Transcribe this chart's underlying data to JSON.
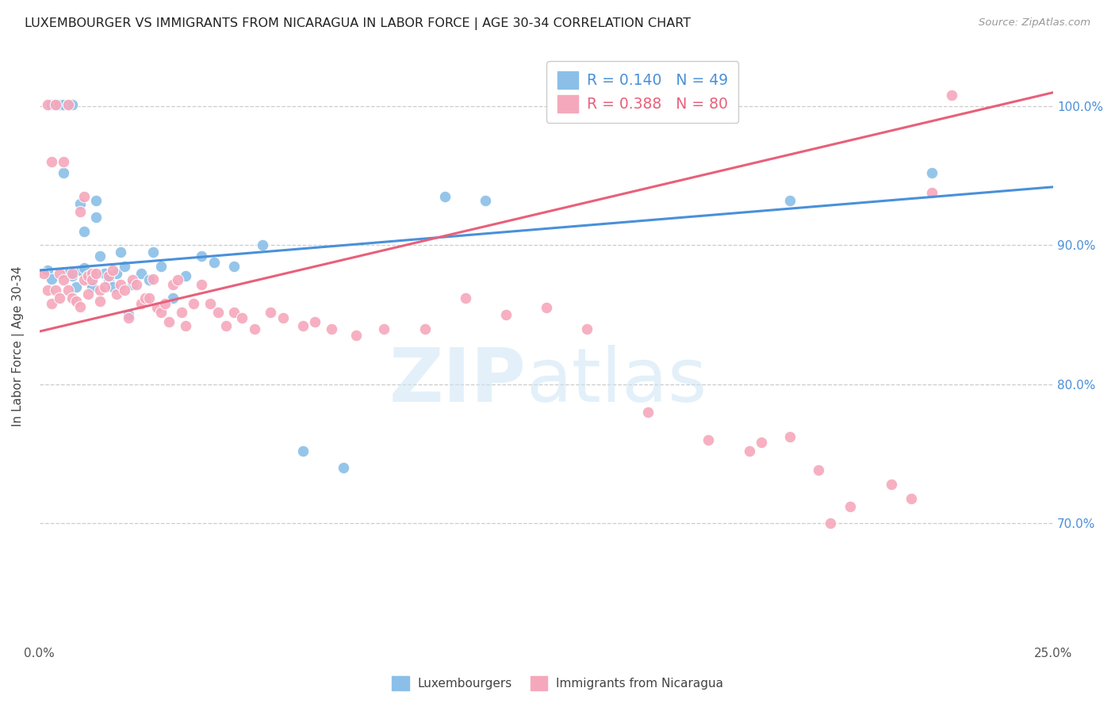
{
  "title": "LUXEMBOURGER VS IMMIGRANTS FROM NICARAGUA IN LABOR FORCE | AGE 30-34 CORRELATION CHART",
  "source": "Source: ZipAtlas.com",
  "ylabel": "In Labor Force | Age 30-34",
  "yaxis_labels": [
    "70.0%",
    "80.0%",
    "90.0%",
    "100.0%"
  ],
  "yaxis_values": [
    0.7,
    0.8,
    0.9,
    1.0
  ],
  "xlim": [
    0.0,
    0.25
  ],
  "ylim": [
    0.615,
    1.04
  ],
  "legend_blue_R": "R = 0.140",
  "legend_blue_N": "N = 49",
  "legend_pink_R": "R = 0.388",
  "legend_pink_N": "N = 80",
  "legend_label_blue": "Luxembourgers",
  "legend_label_pink": "Immigrants from Nicaragua",
  "blue_color": "#8bbfe8",
  "pink_color": "#f5a8bc",
  "blue_line_color": "#4a90d9",
  "pink_line_color": "#e8607a",
  "blue_trend_x0": 0.0,
  "blue_trend_y0": 0.882,
  "blue_trend_x1": 0.25,
  "blue_trend_y1": 0.942,
  "pink_trend_x0": 0.0,
  "pink_trend_y0": 0.838,
  "pink_trend_x1": 0.25,
  "pink_trend_y1": 1.01,
  "blue_x": [
    0.002,
    0.003,
    0.003,
    0.004,
    0.004,
    0.005,
    0.005,
    0.006,
    0.006,
    0.007,
    0.007,
    0.008,
    0.008,
    0.009,
    0.01,
    0.01,
    0.011,
    0.011,
    0.012,
    0.012,
    0.013,
    0.013,
    0.014,
    0.014,
    0.015,
    0.016,
    0.017,
    0.018,
    0.019,
    0.02,
    0.021,
    0.022,
    0.023,
    0.025,
    0.027,
    0.028,
    0.03,
    0.033,
    0.036,
    0.04,
    0.043,
    0.048,
    0.055,
    0.065,
    0.075,
    0.1,
    0.11,
    0.185,
    0.22
  ],
  "blue_y": [
    0.882,
    0.876,
    1.001,
    1.001,
    1.001,
    1.001,
    1.001,
    1.001,
    0.952,
    0.88,
    1.001,
    0.878,
    1.001,
    0.87,
    0.882,
    0.93,
    0.884,
    0.91,
    0.878,
    0.876,
    0.874,
    0.87,
    0.932,
    0.92,
    0.892,
    0.88,
    0.875,
    0.87,
    0.88,
    0.895,
    0.885,
    0.85,
    0.872,
    0.88,
    0.875,
    0.895,
    0.885,
    0.862,
    0.878,
    0.892,
    0.888,
    0.885,
    0.9,
    0.752,
    0.74,
    0.935,
    0.932,
    0.932,
    0.952
  ],
  "pink_x": [
    0.001,
    0.002,
    0.002,
    0.003,
    0.003,
    0.004,
    0.004,
    0.005,
    0.005,
    0.006,
    0.006,
    0.007,
    0.007,
    0.008,
    0.008,
    0.009,
    0.01,
    0.01,
    0.011,
    0.011,
    0.012,
    0.012,
    0.013,
    0.013,
    0.014,
    0.015,
    0.015,
    0.016,
    0.017,
    0.018,
    0.019,
    0.02,
    0.021,
    0.022,
    0.023,
    0.024,
    0.025,
    0.026,
    0.027,
    0.028,
    0.029,
    0.03,
    0.031,
    0.032,
    0.033,
    0.034,
    0.035,
    0.036,
    0.038,
    0.04,
    0.042,
    0.044,
    0.046,
    0.048,
    0.05,
    0.053,
    0.057,
    0.06,
    0.065,
    0.068,
    0.072,
    0.078,
    0.085,
    0.095,
    0.105,
    0.115,
    0.125,
    0.135,
    0.15,
    0.165,
    0.175,
    0.185,
    0.195,
    0.2,
    0.21,
    0.215,
    0.22,
    0.225,
    0.178,
    0.192
  ],
  "pink_y": [
    0.88,
    0.868,
    1.001,
    0.858,
    0.96,
    0.868,
    1.001,
    0.862,
    0.88,
    0.875,
    0.96,
    0.868,
    1.001,
    0.862,
    0.88,
    0.86,
    0.856,
    0.924,
    0.935,
    0.875,
    0.865,
    0.878,
    0.88,
    0.875,
    0.88,
    0.868,
    0.86,
    0.87,
    0.878,
    0.882,
    0.865,
    0.872,
    0.868,
    0.848,
    0.875,
    0.872,
    0.858,
    0.862,
    0.862,
    0.876,
    0.855,
    0.852,
    0.858,
    0.845,
    0.872,
    0.875,
    0.852,
    0.842,
    0.858,
    0.872,
    0.858,
    0.852,
    0.842,
    0.852,
    0.848,
    0.84,
    0.852,
    0.848,
    0.842,
    0.845,
    0.84,
    0.835,
    0.84,
    0.84,
    0.862,
    0.85,
    0.855,
    0.84,
    0.78,
    0.76,
    0.752,
    0.762,
    0.7,
    0.712,
    0.728,
    0.718,
    0.938,
    1.008,
    0.758,
    0.738
  ]
}
